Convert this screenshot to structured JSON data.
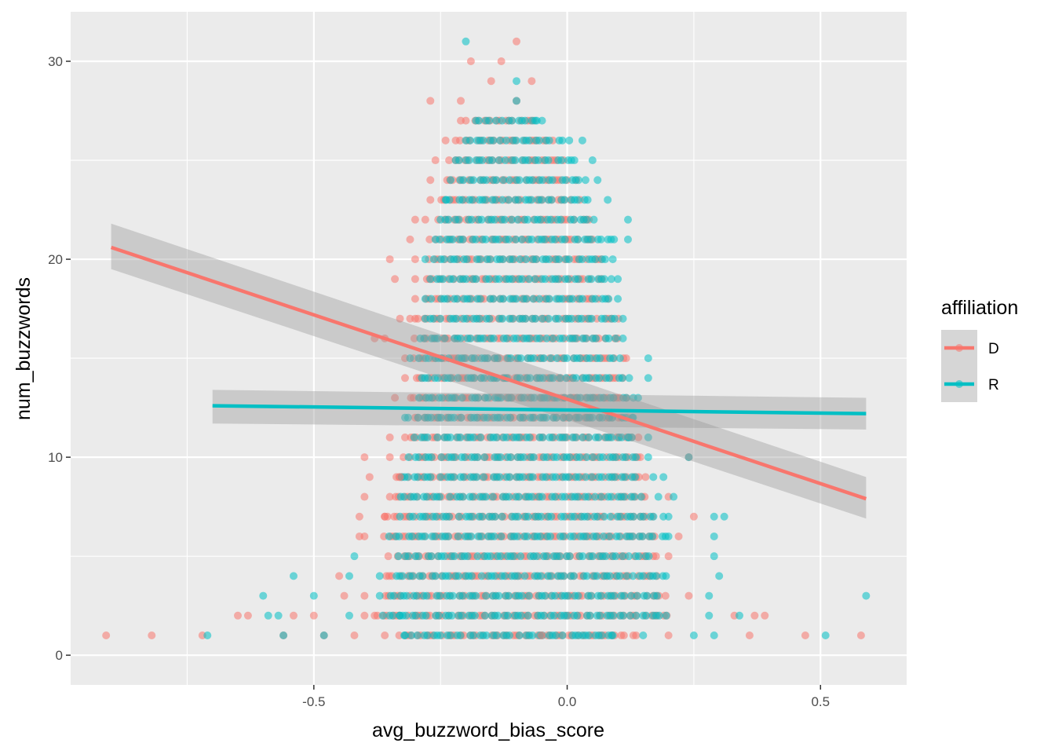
{
  "colors": {
    "D": "#F8766D",
    "R": "#00BFC4",
    "panel": "#EBEBEB",
    "grid": "#FFFFFF",
    "ribbon": "#999999"
  },
  "chart_data": {
    "type": "scatter",
    "xlabel": "avg_buzzword_bias_score",
    "ylabel": "num_buzzwords",
    "xlim": [
      -0.98,
      0.67
    ],
    "ylim": [
      -1.5,
      32.5
    ],
    "x_breaks": [
      -0.5,
      0.0,
      0.5
    ],
    "x_tick_labels": [
      "-0.5",
      "0.0",
      "0.5"
    ],
    "y_breaks": [
      0,
      10,
      20,
      30
    ],
    "y_tick_labels": [
      "0",
      "10",
      "20",
      "30"
    ],
    "grid": true,
    "legend": {
      "title": "affiliation",
      "position": "right",
      "entries": [
        "D",
        "R"
      ]
    },
    "series": [
      {
        "name": "D",
        "color": "#F8766D",
        "points": [
          [
            -0.91,
            1
          ],
          [
            -0.82,
            1
          ],
          [
            -0.72,
            1
          ],
          [
            -0.56,
            1
          ],
          [
            -0.48,
            1
          ],
          [
            -0.42,
            1
          ],
          [
            -0.36,
            1
          ],
          [
            -0.05,
            1
          ],
          [
            0.2,
            1
          ],
          [
            0.36,
            1
          ],
          [
            0.47,
            1
          ],
          [
            0.58,
            1
          ],
          [
            -0.65,
            2
          ],
          [
            -0.63,
            2
          ],
          [
            -0.54,
            2
          ],
          [
            -0.5,
            2
          ],
          [
            -0.4,
            2
          ],
          [
            0.33,
            2
          ],
          [
            0.37,
            2
          ],
          [
            0.39,
            2
          ],
          [
            -0.44,
            3
          ],
          [
            -0.4,
            3
          ],
          [
            0.24,
            3
          ],
          [
            -0.45,
            4
          ],
          [
            0.2,
            5
          ],
          [
            -0.41,
            6
          ],
          [
            -0.4,
            6
          ],
          [
            0.22,
            6
          ],
          [
            -0.41,
            7
          ],
          [
            -0.36,
            7
          ],
          [
            0.25,
            7
          ],
          [
            -0.4,
            8
          ],
          [
            -0.35,
            8
          ],
          [
            0.2,
            8
          ],
          [
            -0.39,
            9
          ],
          [
            -0.33,
            9
          ],
          [
            -0.4,
            10
          ],
          [
            -0.35,
            10
          ],
          [
            0.24,
            10
          ],
          [
            -0.35,
            11
          ],
          [
            -0.32,
            11
          ],
          [
            -0.34,
            13
          ],
          [
            -0.32,
            14
          ],
          [
            -0.32,
            15
          ],
          [
            -0.38,
            16
          ],
          [
            -0.36,
            16
          ],
          [
            -0.33,
            17
          ],
          [
            -0.31,
            17
          ],
          [
            -0.3,
            18
          ],
          [
            -0.34,
            19
          ],
          [
            -0.3,
            19
          ],
          [
            -0.35,
            20
          ],
          [
            -0.3,
            20
          ],
          [
            -0.31,
            21
          ],
          [
            -0.3,
            22
          ],
          [
            -0.28,
            22
          ],
          [
            -0.27,
            23
          ],
          [
            -0.27,
            24
          ],
          [
            -0.26,
            25
          ],
          [
            -0.24,
            26
          ],
          [
            -0.22,
            26
          ],
          [
            -0.21,
            27
          ],
          [
            -0.21,
            28
          ],
          [
            -0.27,
            28
          ],
          [
            -0.1,
            28
          ],
          [
            -0.15,
            29
          ],
          [
            -0.07,
            29
          ],
          [
            -0.19,
            30
          ],
          [
            -0.13,
            30
          ],
          [
            -0.1,
            31
          ]
        ]
      },
      {
        "name": "R",
        "color": "#00BFC4",
        "points": [
          [
            -0.71,
            1
          ],
          [
            -0.56,
            1
          ],
          [
            -0.48,
            1
          ],
          [
            -0.32,
            1
          ],
          [
            0.03,
            1
          ],
          [
            0.09,
            1
          ],
          [
            0.15,
            1
          ],
          [
            0.25,
            1
          ],
          [
            0.29,
            1
          ],
          [
            0.51,
            1
          ],
          [
            -0.59,
            2
          ],
          [
            -0.57,
            2
          ],
          [
            -0.43,
            2
          ],
          [
            -0.33,
            2
          ],
          [
            0.28,
            2
          ],
          [
            0.34,
            2
          ],
          [
            -0.6,
            3
          ],
          [
            -0.5,
            3
          ],
          [
            -0.37,
            3
          ],
          [
            0.28,
            3
          ],
          [
            0.59,
            3
          ],
          [
            -0.54,
            4
          ],
          [
            -0.43,
            4
          ],
          [
            -0.37,
            4
          ],
          [
            0.3,
            4
          ],
          [
            -0.42,
            5
          ],
          [
            0.29,
            5
          ],
          [
            0.29,
            6
          ],
          [
            0.2,
            6
          ],
          [
            0.29,
            7
          ],
          [
            0.31,
            7
          ],
          [
            0.2,
            7
          ],
          [
            0.18,
            8
          ],
          [
            0.21,
            8
          ],
          [
            0.19,
            9
          ],
          [
            0.17,
            9
          ],
          [
            0.16,
            10
          ],
          [
            0.24,
            10
          ],
          [
            0.12,
            11
          ],
          [
            0.16,
            11
          ],
          [
            0.13,
            12
          ],
          [
            0.14,
            13
          ],
          [
            0.16,
            14
          ],
          [
            0.16,
            15
          ],
          [
            0.11,
            16
          ],
          [
            0.11,
            17
          ],
          [
            0.1,
            18
          ],
          [
            0.1,
            19
          ],
          [
            0.09,
            20
          ],
          [
            0.12,
            21
          ],
          [
            0.12,
            22
          ],
          [
            0.08,
            23
          ],
          [
            0.06,
            24
          ],
          [
            0.05,
            25
          ],
          [
            0.03,
            26
          ],
          [
            -0.06,
            27
          ],
          [
            -0.1,
            28
          ],
          [
            -0.1,
            29
          ],
          [
            -0.2,
            31
          ],
          [
            -0.31,
            15
          ],
          [
            -0.29,
            16
          ],
          [
            -0.28,
            17
          ],
          [
            -0.28,
            18
          ],
          [
            -0.27,
            19
          ],
          [
            -0.28,
            20
          ],
          [
            -0.26,
            21
          ],
          [
            -0.25,
            22
          ],
          [
            -0.24,
            23
          ],
          [
            -0.23,
            24
          ],
          [
            -0.22,
            25
          ],
          [
            -0.2,
            26
          ]
        ]
      }
    ],
    "row_bands": [
      {
        "y": 1,
        "D": [
          -0.33,
          0.14
        ],
        "R": [
          -0.32,
          0.1
        ]
      },
      {
        "y": 2,
        "D": [
          -0.38,
          0.2
        ],
        "R": [
          -0.37,
          0.2
        ]
      },
      {
        "y": 3,
        "D": [
          -0.36,
          0.2
        ],
        "R": [
          -0.35,
          0.18
        ]
      },
      {
        "y": 4,
        "D": [
          -0.36,
          0.18
        ],
        "R": [
          -0.34,
          0.2
        ]
      },
      {
        "y": 5,
        "D": [
          -0.35,
          0.18
        ],
        "R": [
          -0.33,
          0.17
        ]
      },
      {
        "y": 6,
        "D": [
          -0.36,
          0.18
        ],
        "R": [
          -0.35,
          0.2
        ]
      },
      {
        "y": 7,
        "D": [
          -0.36,
          0.17
        ],
        "R": [
          -0.33,
          0.19
        ]
      },
      {
        "y": 8,
        "D": [
          -0.34,
          0.16
        ],
        "R": [
          -0.33,
          0.15
        ]
      },
      {
        "y": 9,
        "D": [
          -0.34,
          0.16
        ],
        "R": [
          -0.33,
          0.15
        ]
      },
      {
        "y": 10,
        "D": [
          -0.32,
          0.15
        ],
        "R": [
          -0.31,
          0.14
        ]
      },
      {
        "y": 11,
        "D": [
          -0.32,
          0.14
        ],
        "R": [
          -0.3,
          0.13
        ]
      },
      {
        "y": 12,
        "D": [
          -0.3,
          0.12
        ],
        "R": [
          -0.32,
          0.13
        ]
      },
      {
        "y": 13,
        "D": [
          -0.31,
          0.13
        ],
        "R": [
          -0.3,
          0.13
        ]
      },
      {
        "y": 14,
        "D": [
          -0.3,
          0.12
        ],
        "R": [
          -0.29,
          0.12
        ]
      },
      {
        "y": 15,
        "D": [
          -0.3,
          0.12
        ],
        "R": [
          -0.29,
          0.11
        ]
      },
      {
        "y": 16,
        "D": [
          -0.3,
          0.1
        ],
        "R": [
          -0.28,
          0.1
        ]
      },
      {
        "y": 17,
        "D": [
          -0.3,
          0.1
        ],
        "R": [
          -0.27,
          0.1
        ]
      },
      {
        "y": 18,
        "D": [
          -0.28,
          0.08
        ],
        "R": [
          -0.27,
          0.09
        ]
      },
      {
        "y": 19,
        "D": [
          -0.28,
          0.07
        ],
        "R": [
          -0.26,
          0.09
        ]
      },
      {
        "y": 20,
        "D": [
          -0.27,
          0.07
        ],
        "R": [
          -0.26,
          0.08
        ]
      },
      {
        "y": 21,
        "D": [
          -0.27,
          0.06
        ],
        "R": [
          -0.25,
          0.1
        ]
      },
      {
        "y": 22,
        "D": [
          -0.26,
          0.05
        ],
        "R": [
          -0.24,
          0.06
        ]
      },
      {
        "y": 23,
        "D": [
          -0.25,
          0.03
        ],
        "R": [
          -0.24,
          0.05
        ]
      },
      {
        "y": 24,
        "D": [
          -0.24,
          0.02
        ],
        "R": [
          -0.22,
          0.04
        ]
      },
      {
        "y": 25,
        "D": [
          -0.23,
          0.0
        ],
        "R": [
          -0.21,
          0.02
        ]
      },
      {
        "y": 26,
        "D": [
          -0.21,
          -0.03
        ],
        "R": [
          -0.19,
          0.01
        ]
      },
      {
        "y": 27,
        "D": [
          -0.2,
          -0.06
        ],
        "R": [
          -0.18,
          -0.05
        ]
      }
    ],
    "fit_lines": [
      {
        "name": "D",
        "color": "#F8766D",
        "x": [
          -0.9,
          0.59
        ],
        "y": [
          20.6,
          7.9
        ],
        "ci_lower": [
          19.5,
          6.9
        ],
        "ci_upper": [
          21.8,
          9.0
        ]
      },
      {
        "name": "R",
        "color": "#00BFC4",
        "x": [
          -0.7,
          0.59
        ],
        "y": [
          12.6,
          12.2
        ],
        "ci_lower": [
          11.7,
          11.4
        ],
        "ci_upper": [
          13.4,
          13.0
        ]
      }
    ]
  }
}
